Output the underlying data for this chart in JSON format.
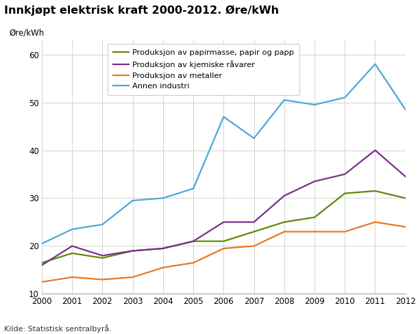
{
  "title": "Innkjøpt elektrisk kraft 2000-2012. Øre/kWh",
  "ylabel": "Øre/kWh",
  "source": "Kilde: Statistisk sentralbyrå.",
  "years": [
    2000,
    2001,
    2002,
    2003,
    2004,
    2005,
    2006,
    2007,
    2008,
    2009,
    2010,
    2011,
    2012
  ],
  "series": [
    {
      "label": "Produksjon av papirmasse, papir og papp",
      "color": "#5a8a00",
      "values": [
        16.5,
        18.5,
        17.5,
        19.0,
        19.5,
        21.0,
        21.0,
        23.0,
        25.0,
        26.0,
        31.0,
        31.5,
        30.0
      ]
    },
    {
      "label": "Produksjon av kjemiske råvarer",
      "color": "#7b2d8b",
      "values": [
        16.0,
        20.0,
        18.0,
        19.0,
        19.5,
        21.0,
        25.0,
        25.0,
        30.5,
        33.5,
        35.0,
        40.0,
        34.5
      ]
    },
    {
      "label": "Produksjon av metaller",
      "color": "#e87722",
      "values": [
        12.5,
        13.5,
        13.0,
        13.5,
        15.5,
        16.5,
        19.5,
        20.0,
        23.0,
        23.0,
        23.0,
        25.0,
        24.0
      ]
    },
    {
      "label": "Annen industri",
      "color": "#4aa8d8",
      "values": [
        20.5,
        23.5,
        24.5,
        29.5,
        30.0,
        32.0,
        47.0,
        42.5,
        50.5,
        49.5,
        51.0,
        58.0,
        48.5
      ]
    }
  ],
  "ylim": [
    10,
    63
  ],
  "yticks": [
    10,
    20,
    30,
    40,
    50,
    60
  ],
  "background_color": "#ffffff",
  "grid_color": "#cccccc"
}
